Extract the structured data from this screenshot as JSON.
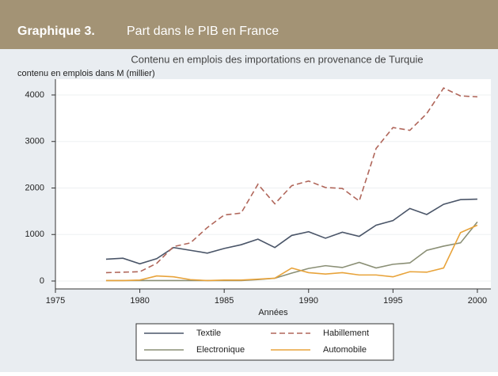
{
  "header": {
    "label": "Graphique 3.",
    "title": "Part dans le PIB en France"
  },
  "chart_data": {
    "type": "line",
    "title": "Contenu en emplois des importations en provenance de Turquie",
    "y_label": "contenu en emplois dans M (millier)",
    "x_label": "Années",
    "x": [
      1978,
      1979,
      1980,
      1981,
      1982,
      1983,
      1984,
      1985,
      1986,
      1987,
      1988,
      1989,
      1990,
      1991,
      1992,
      1993,
      1994,
      1995,
      1996,
      1997,
      1998,
      1999,
      2000
    ],
    "series": [
      {
        "name": "Textile",
        "color": "#4a5568",
        "dash": false,
        "values": [
          470,
          490,
          370,
          480,
          720,
          660,
          600,
          700,
          780,
          900,
          720,
          980,
          1060,
          920,
          1050,
          960,
          1200,
          1300,
          1560,
          1430,
          1650,
          1750,
          1760
        ]
      },
      {
        "name": "Habillement",
        "color": "#b0665a",
        "dash": true,
        "values": [
          180,
          190,
          200,
          380,
          740,
          820,
          1150,
          1420,
          1460,
          2080,
          1660,
          2050,
          2150,
          2010,
          1990,
          1720,
          2850,
          3300,
          3240,
          3600,
          4150,
          3980,
          3960
        ]
      },
      {
        "name": "Electronique",
        "color": "#8a8f75",
        "dash": false,
        "values": [
          10,
          10,
          10,
          10,
          10,
          10,
          10,
          10,
          10,
          30,
          60,
          170,
          270,
          330,
          290,
          400,
          280,
          360,
          390,
          660,
          750,
          820,
          1270
        ]
      },
      {
        "name": "Automobile",
        "color": "#e8a33a",
        "dash": false,
        "values": [
          10,
          10,
          20,
          110,
          90,
          30,
          10,
          20,
          20,
          40,
          60,
          280,
          180,
          150,
          180,
          130,
          130,
          90,
          200,
          190,
          280,
          1040,
          1200
        ]
      }
    ],
    "xlim": [
      1975,
      2000.8
    ],
    "xticks": [
      1975,
      1980,
      1985,
      1990,
      1995,
      2000
    ],
    "ylim": [
      -170,
      4340
    ],
    "yticks": [
      0,
      1000,
      2000,
      3000,
      4000
    ],
    "grid": true
  }
}
